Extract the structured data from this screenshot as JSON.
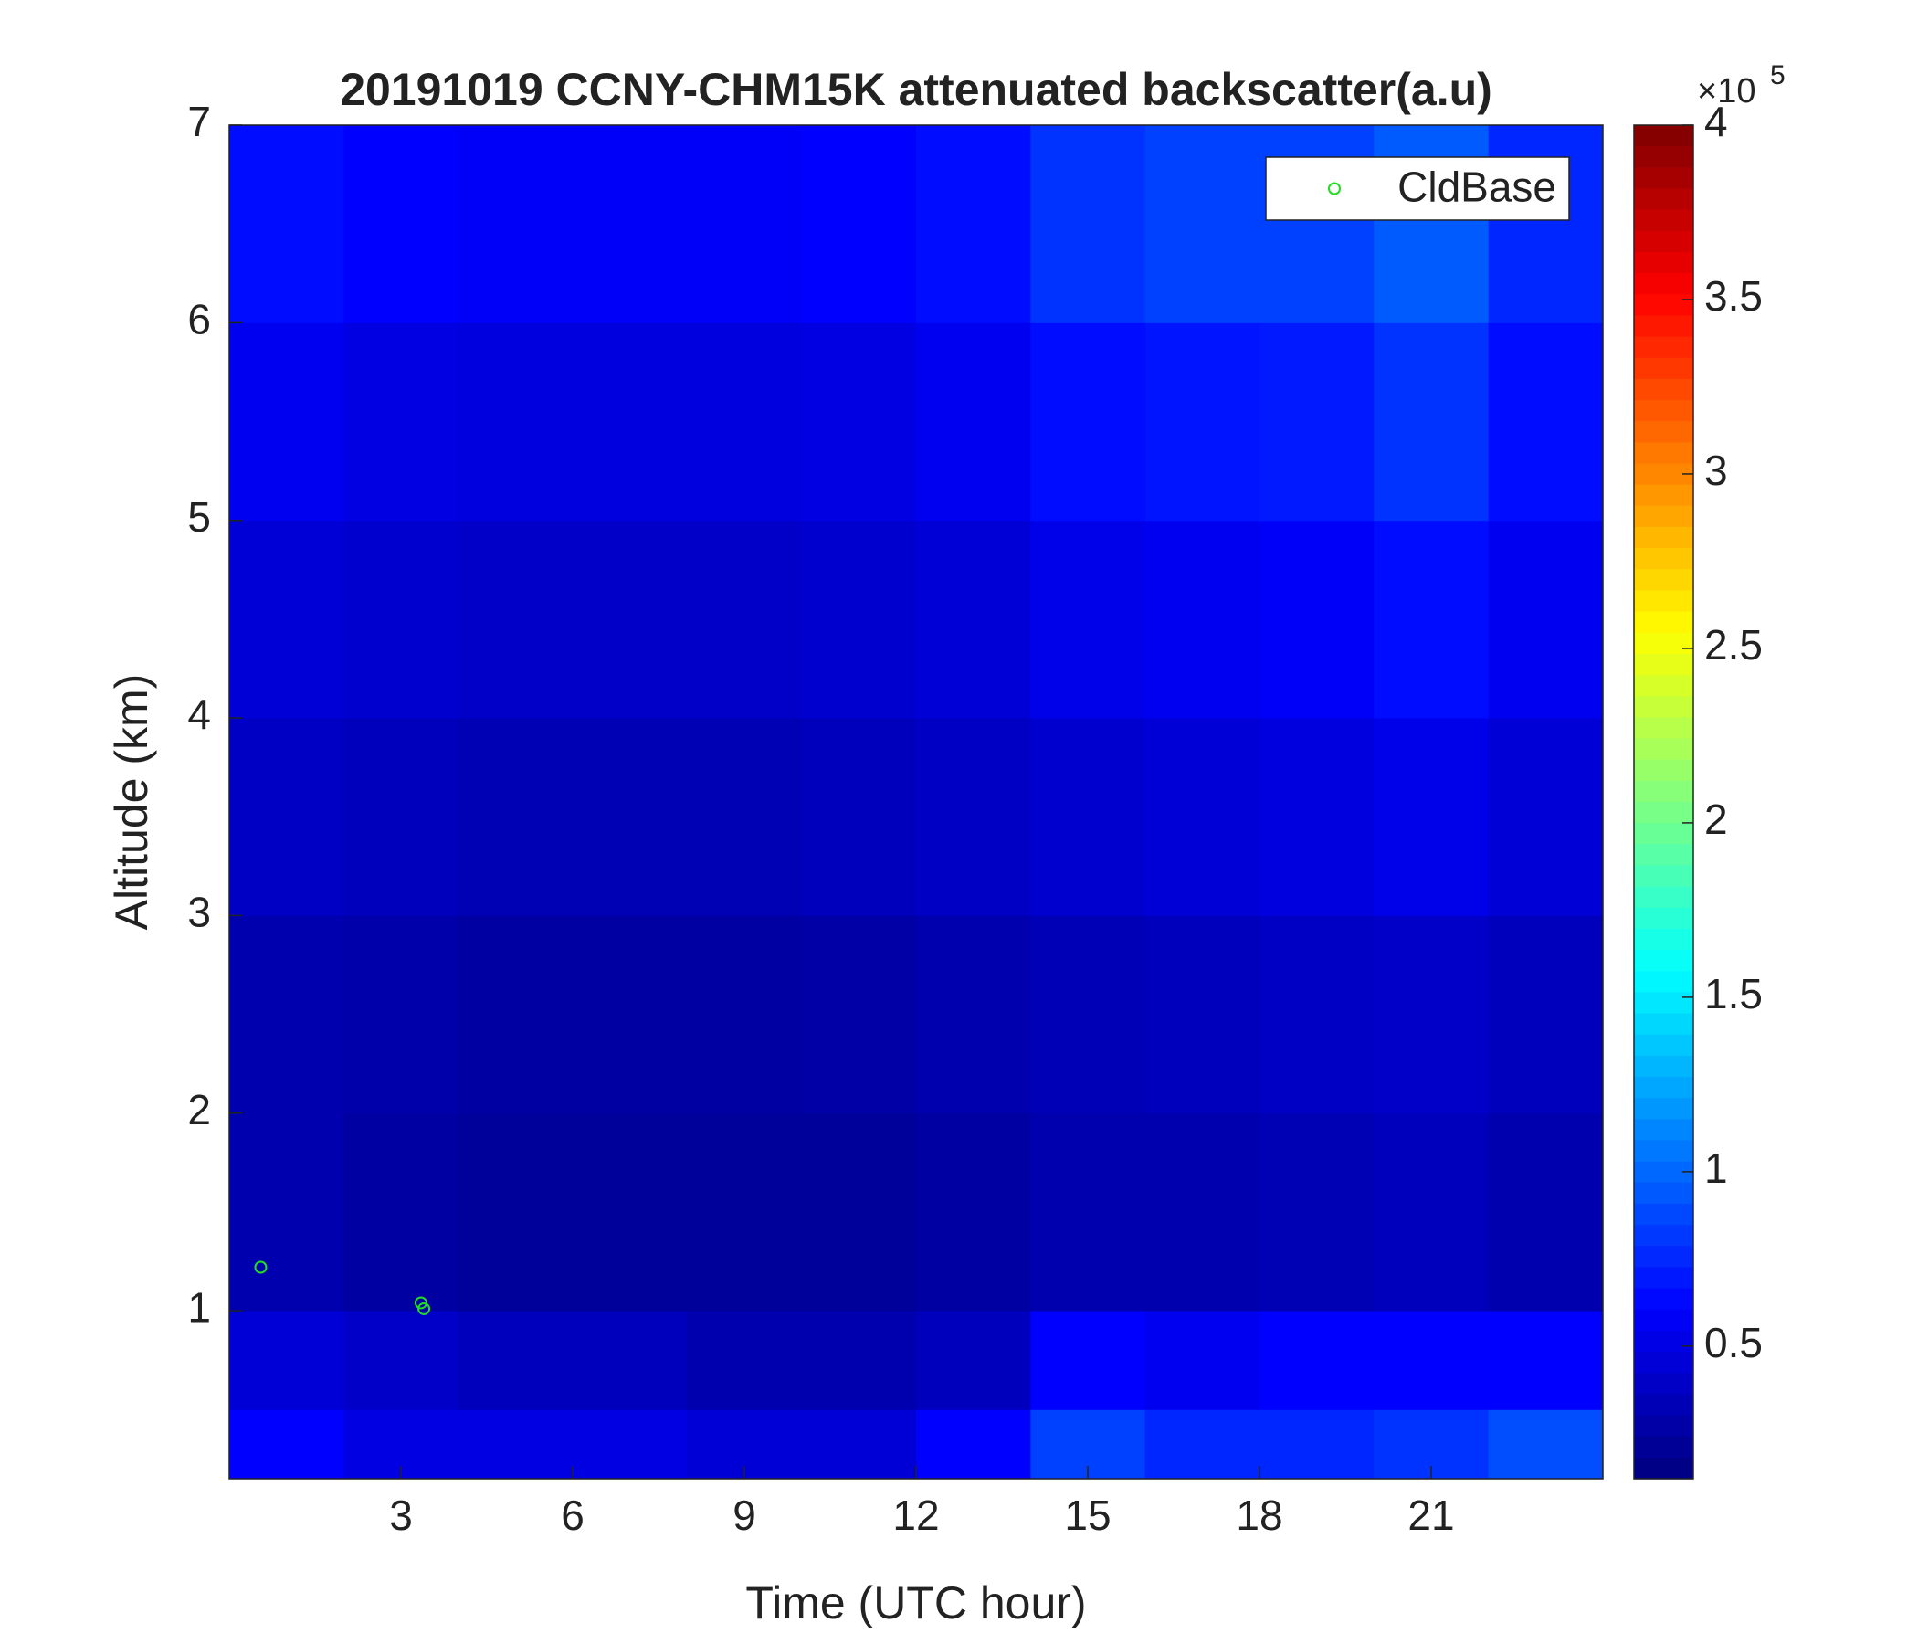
{
  "chart_data": {
    "type": "heatmap",
    "title": "20191019 CCNY-CHM15K attenuated backscatter(a.u)",
    "x_label": "Time (UTC hour)",
    "y_label": "Altitude (km)",
    "x_bins": [
      0,
      2,
      4,
      6,
      8,
      10,
      12,
      14,
      16,
      18,
      20,
      22,
      24
    ],
    "y_bins": [
      0.15,
      0.5,
      1,
      2,
      3,
      4,
      5,
      6,
      7
    ],
    "z": [
      [
        0.6,
        0.5,
        0.5,
        0.5,
        0.45,
        0.45,
        0.6,
        0.85,
        0.75,
        0.75,
        0.8,
        0.9
      ],
      [
        0.45,
        0.4,
        0.35,
        0.35,
        0.3,
        0.3,
        0.35,
        0.6,
        0.55,
        0.6,
        0.6,
        0.6
      ],
      [
        0.3,
        0.25,
        0.22,
        0.22,
        0.22,
        0.22,
        0.25,
        0.3,
        0.3,
        0.32,
        0.35,
        0.3
      ],
      [
        0.3,
        0.28,
        0.25,
        0.25,
        0.25,
        0.27,
        0.3,
        0.33,
        0.35,
        0.38,
        0.4,
        0.35
      ],
      [
        0.38,
        0.35,
        0.32,
        0.32,
        0.32,
        0.35,
        0.38,
        0.42,
        0.45,
        0.48,
        0.52,
        0.45
      ],
      [
        0.45,
        0.42,
        0.4,
        0.4,
        0.4,
        0.42,
        0.45,
        0.52,
        0.55,
        0.58,
        0.65,
        0.55
      ],
      [
        0.55,
        0.5,
        0.48,
        0.48,
        0.48,
        0.5,
        0.55,
        0.65,
        0.68,
        0.7,
        0.8,
        0.65
      ],
      [
        0.65,
        0.6,
        0.58,
        0.58,
        0.58,
        0.6,
        0.65,
        0.8,
        0.85,
        0.85,
        0.95,
        0.75
      ]
    ],
    "colormap": "jet",
    "clim": [
      0.12,
      4
    ],
    "colorbar_ticks": [
      0.5,
      1,
      1.5,
      2,
      2.5,
      3,
      3.5,
      4
    ],
    "colorbar_multiplier": "×10",
    "colorbar_exponent": "5",
    "xlim": [
      0,
      24
    ],
    "xticks": [
      3,
      6,
      9,
      12,
      15,
      18,
      21
    ],
    "ylim": [
      0.15,
      7
    ],
    "yticks": [
      1,
      2,
      3,
      4,
      5,
      6,
      7
    ],
    "series": [
      {
        "name": "CldBase",
        "color": "#22dd22",
        "x": [
          0.55,
          3.35,
          3.4
        ],
        "y": [
          1.22,
          1.04,
          1.01
        ]
      }
    ],
    "legend": "top-right"
  }
}
